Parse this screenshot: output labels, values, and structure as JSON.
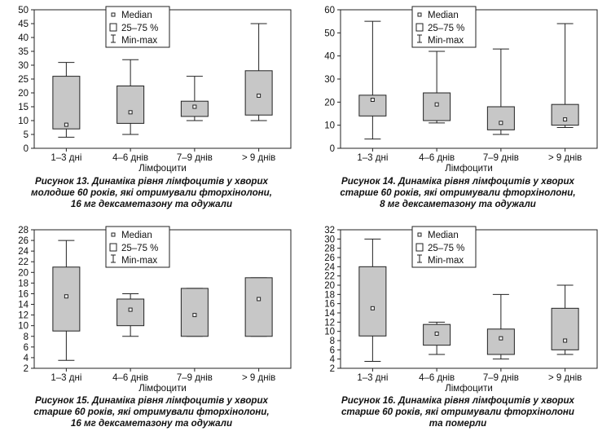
{
  "chart_data": [
    {
      "type": "boxplot",
      "ylim": [
        0,
        50
      ],
      "yticks": [
        0,
        5,
        10,
        15,
        20,
        25,
        30,
        35,
        40,
        45,
        50
      ],
      "categories": [
        "1–3 дні",
        "4–6 днів",
        "7–9 днів",
        "> 9 днів"
      ],
      "xlabel": "Лімфоцити",
      "legend": {
        "position": "top-center",
        "median": "Median",
        "box": "25–75 %",
        "whisker": "Min-max"
      },
      "boxes": [
        {
          "min": 4,
          "q1": 7,
          "median": 8.5,
          "q3": 26,
          "max": 31
        },
        {
          "min": 5,
          "q1": 9,
          "median": 13,
          "q3": 22.5,
          "max": 32
        },
        {
          "min": 10,
          "q1": 11.5,
          "median": 15,
          "q3": 17,
          "max": 26
        },
        {
          "min": 10,
          "q1": 12,
          "median": 19,
          "q3": 28,
          "max": 45
        }
      ],
      "caption": [
        "Рисунок 13. Динаміка рівня лімфоцитів у хворих",
        "молодше 60 років, які отримували фторхінолони,",
        "16 мг дексаметазону та одужали"
      ]
    },
    {
      "type": "boxplot",
      "ylim": [
        0,
        60
      ],
      "yticks": [
        0,
        10,
        20,
        30,
        40,
        50,
        60
      ],
      "categories": [
        "1–3 дні",
        "4–6 днів",
        "7–9 днів",
        "> 9 днів"
      ],
      "xlabel": "Лімфоцити",
      "legend": {
        "position": "top-center",
        "median": "Median",
        "box": "25–75 %",
        "whisker": "Min-max"
      },
      "boxes": [
        {
          "min": 4,
          "q1": 14,
          "median": 21,
          "q3": 23,
          "max": 55
        },
        {
          "min": 11,
          "q1": 12,
          "median": 19,
          "q3": 24,
          "max": 42
        },
        {
          "min": 6,
          "q1": 8,
          "median": 11,
          "q3": 18,
          "max": 43
        },
        {
          "min": 9,
          "q1": 10,
          "median": 12.5,
          "q3": 19,
          "max": 54
        }
      ],
      "caption": [
        "Рисунок 14. Динаміка рівня лімфоцитів у хворих",
        "старше 60 років, які отримували фторхінолони,",
        "8 мг дексаметазону та одужали"
      ]
    },
    {
      "type": "boxplot",
      "ylim": [
        2,
        28
      ],
      "yticks": [
        2,
        4,
        6,
        8,
        10,
        12,
        14,
        16,
        18,
        20,
        22,
        24,
        26,
        28
      ],
      "categories": [
        "1–3 дні",
        "4–6 днів",
        "7–9 днів",
        "> 9 днів"
      ],
      "xlabel": "Лімфоцити",
      "legend": {
        "position": "top-center",
        "median": "Median",
        "box": "25–75 %",
        "whisker": "Min-max"
      },
      "boxes": [
        {
          "min": 3.5,
          "q1": 9,
          "median": 15.5,
          "q3": 21,
          "max": 26
        },
        {
          "min": 8,
          "q1": 10,
          "median": 13,
          "q3": 15,
          "max": 16
        },
        {
          "min": 8,
          "q1": 8,
          "median": 12,
          "q3": 17,
          "max": 17
        },
        {
          "min": 8,
          "q1": 8,
          "median": 15,
          "q3": 19,
          "max": 19
        }
      ],
      "caption": [
        "Рисунок 15. Динаміка рівня лімфоцитів у хворих",
        "старше 60 років, які отримували фторхінолони,",
        "16 мг дексаметазону та одужали"
      ]
    },
    {
      "type": "boxplot",
      "ylim": [
        2,
        32
      ],
      "yticks": [
        2,
        4,
        6,
        8,
        10,
        12,
        14,
        16,
        18,
        20,
        22,
        24,
        26,
        28,
        30,
        32
      ],
      "categories": [
        "1–3 дні",
        "4–6 днів",
        "7–9 днів",
        "> 9 днів"
      ],
      "xlabel": "Лімфоцити",
      "legend": {
        "position": "top-center",
        "median": "Median",
        "box": "25–75 %",
        "whisker": "Min-max"
      },
      "boxes": [
        {
          "min": 3.5,
          "q1": 9,
          "median": 15,
          "q3": 24,
          "max": 30
        },
        {
          "min": 5,
          "q1": 7,
          "median": 9.5,
          "q3": 11.5,
          "max": 12
        },
        {
          "min": 4,
          "q1": 5,
          "median": 8.5,
          "q3": 10.5,
          "max": 18
        },
        {
          "min": 5,
          "q1": 6,
          "median": 8,
          "q3": 15,
          "max": 20
        }
      ],
      "caption": [
        "Рисунок 16. Динаміка рівня лімфоцитів у хворих",
        "старше 60 років, які отримували фторхінолони",
        "та померли"
      ]
    }
  ]
}
